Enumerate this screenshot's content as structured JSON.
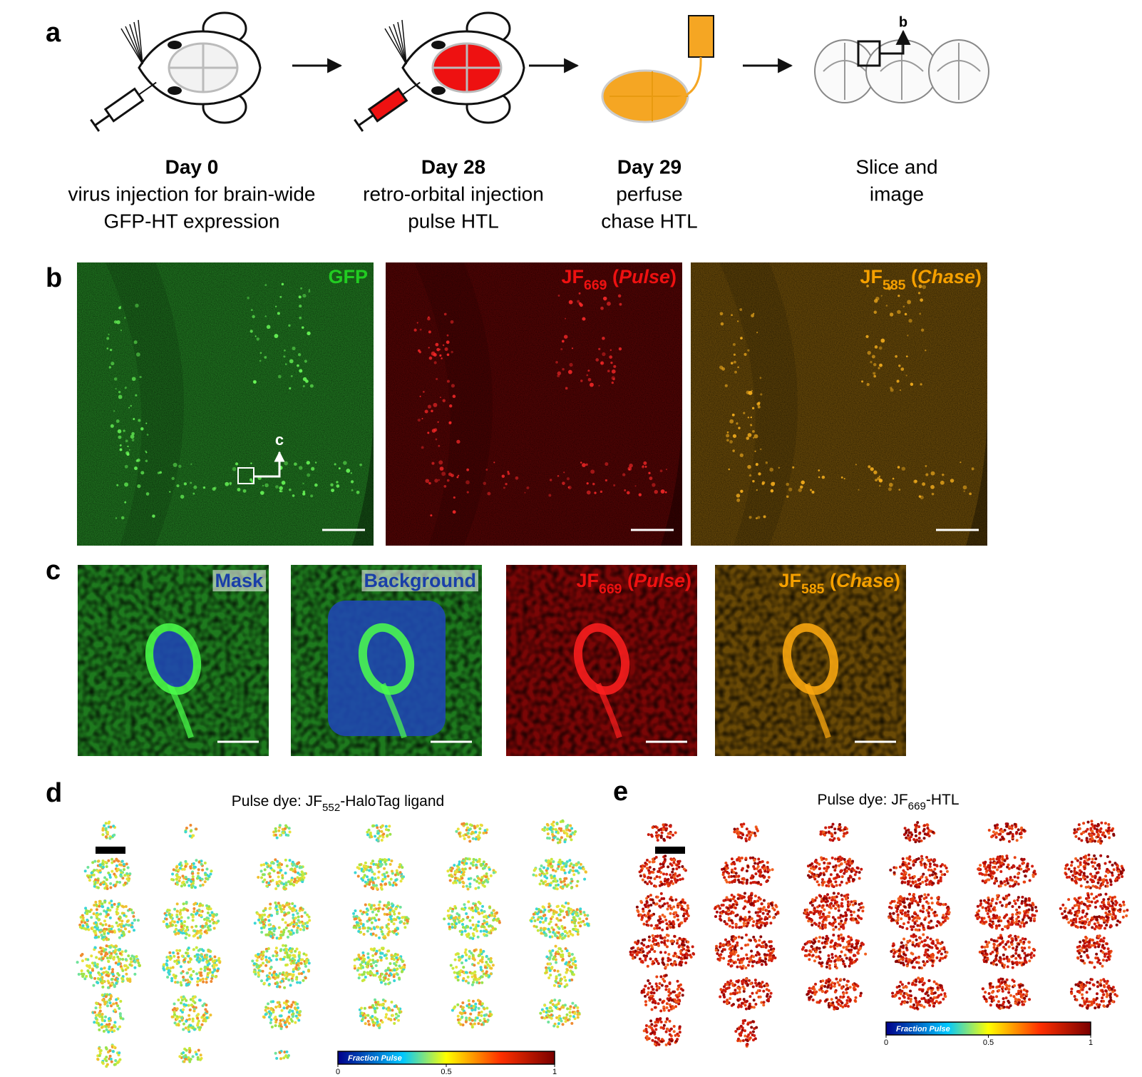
{
  "panel_a": {
    "label": "a",
    "callout": "b",
    "steps": [
      {
        "day": "Day 0",
        "lines": [
          "virus injection for brain-wide",
          "GFP-HT expression"
        ]
      },
      {
        "day": "Day 28",
        "lines": [
          "retro-orbital injection",
          "pulse HTL"
        ]
      },
      {
        "day": "Day 29",
        "lines": [
          "perfuse",
          "chase HTL"
        ]
      },
      {
        "lines": [
          "Slice and",
          "image"
        ]
      }
    ]
  },
  "panel_b": {
    "label": "b",
    "callout": "c",
    "images": [
      {
        "parts": [
          {
            "text": "GFP"
          }
        ],
        "color": "#22cc22"
      },
      {
        "parts": [
          {
            "text": "JF"
          },
          {
            "text": "669",
            "style": "sub"
          },
          {
            "text": " ("
          },
          {
            "text": "Pulse",
            "style": "italic"
          },
          {
            "text": ")"
          }
        ],
        "color": "#ee1111"
      },
      {
        "parts": [
          {
            "text": "JF"
          },
          {
            "text": "585",
            "style": "sub"
          },
          {
            "text": " ("
          },
          {
            "text": "Chase",
            "style": "italic"
          },
          {
            "text": ")"
          }
        ],
        "color": "#f5a000"
      }
    ]
  },
  "panel_c": {
    "label": "c",
    "images": [
      {
        "parts": [
          {
            "text": "Mask"
          }
        ],
        "color": "#1a3fa8"
      },
      {
        "parts": [
          {
            "text": "Background"
          }
        ],
        "color": "#1a3fa8"
      },
      {
        "parts": [
          {
            "text": "JF"
          },
          {
            "text": "669",
            "style": "sub"
          },
          {
            "text": " ("
          },
          {
            "text": "Pulse",
            "style": "italic"
          },
          {
            "text": ")"
          }
        ],
        "color": "#ee1111"
      },
      {
        "parts": [
          {
            "text": "JF"
          },
          {
            "text": "585",
            "style": "sub"
          },
          {
            "text": " ("
          },
          {
            "text": "Chase",
            "style": "italic"
          },
          {
            "text": ")"
          }
        ],
        "color": "#f5a000"
      }
    ]
  },
  "panel_d": {
    "label": "d",
    "title_parts": [
      {
        "text": "Pulse dye: JF"
      },
      {
        "text": "552",
        "style": "sub"
      },
      {
        "text": "-HaloTag ligand"
      }
    ],
    "colorbar": {
      "label": "Fraction Pulse",
      "ticks": [
        0,
        0.5,
        1
      ]
    }
  },
  "panel_e": {
    "label": "e",
    "title_parts": [
      {
        "text": "Pulse dye: JF"
      },
      {
        "text": "669",
        "style": "sub"
      },
      {
        "text": "-HTL"
      }
    ],
    "colorbar": {
      "label": "Fraction Pulse",
      "ticks": [
        0,
        0.5,
        1
      ]
    }
  }
}
